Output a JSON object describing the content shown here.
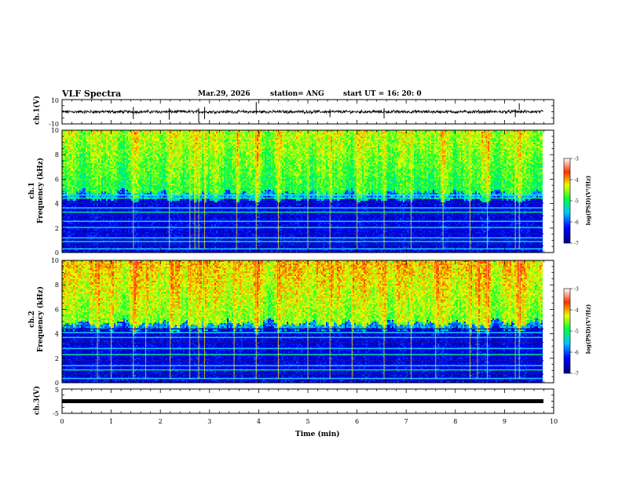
{
  "header": {
    "title": "VLF Spectra",
    "date": "Mar.29, 2026",
    "station": "station= ANG",
    "start": "start  UT =   16: 20: 0"
  },
  "chart_data": [
    {
      "type": "line",
      "name": "ch1-waveform",
      "ylabel": "ch.1(V)",
      "ytick_labels": [
        "10",
        "-10"
      ],
      "ylim": [
        -10,
        10
      ],
      "xlim": [
        0,
        10
      ],
      "baseline": 0,
      "spikes": [
        [
          1.45,
          0.4,
          -1.2
        ],
        [
          2.18,
          0.3,
          -1.3
        ],
        [
          2.78,
          -0.9,
          0.6
        ],
        [
          2.82,
          0.2,
          0.4
        ],
        [
          2.9,
          0.4,
          -1.2
        ],
        [
          3.95,
          0.8,
          -0.4
        ],
        [
          5.45,
          0.2,
          -0.9
        ],
        [
          6.55,
          0.3,
          -1.1
        ],
        [
          9.22,
          0.2,
          -0.9
        ],
        [
          9.3,
          0.7,
          0.3
        ]
      ]
    },
    {
      "type": "heatmap",
      "name": "ch1-spectrogram",
      "ylabel": "ch.1\nFrequency (kHz)",
      "ylim": [
        0,
        10
      ],
      "xlim": [
        0,
        10
      ],
      "ytick_labels": [
        "0",
        "2",
        "4",
        "6",
        "8",
        "10"
      ],
      "colorbar": {
        "label": "log(PSD)(V²/Hz)",
        "range": [
          -7,
          -3
        ],
        "tick_labels": [
          "-3",
          "-4",
          "-5",
          "-6",
          "-7"
        ]
      },
      "bands_khz": [
        0.3,
        0.55,
        0.9,
        1.2,
        1.55,
        2.05,
        2.55,
        3.0,
        3.3,
        3.65,
        4.05,
        4.45,
        4.7
      ],
      "bursts_min": [
        1.45,
        2.18,
        2.6,
        2.7,
        2.78,
        2.9,
        3.55,
        3.95,
        4.4,
        5.0,
        5.45,
        6.0,
        6.55,
        7.1,
        7.75,
        8.3,
        8.65,
        9.22,
        9.3
      ],
      "description": "broadband emissions above ~5 kHz with log(PSD) -5 to -3; quiet -7 to -6 between 0.5 and 5 kHz"
    },
    {
      "type": "heatmap",
      "name": "ch2-spectrogram",
      "ylabel": "ch.2\nFrequency (kHz)",
      "ylim": [
        0,
        10
      ],
      "xlim": [
        0,
        10
      ],
      "ytick_labels": [
        "0",
        "2",
        "4",
        "6",
        "8",
        "10"
      ],
      "colorbar": {
        "label": "log(PSD)(V²/Hz)",
        "range": [
          -7,
          -3
        ],
        "tick_labels": [
          "-3",
          "-4",
          "-5",
          "-6",
          "-7"
        ]
      },
      "bands_khz": [
        0.35,
        0.7,
        1.05,
        1.4,
        1.8,
        2.3,
        2.8,
        3.3,
        3.7,
        4.1,
        4.4
      ],
      "bursts_min": [
        0.72,
        1.0,
        1.45,
        1.7,
        2.2,
        2.6,
        2.78,
        2.9,
        3.5,
        3.95,
        4.4,
        5.0,
        5.45,
        5.9,
        6.55,
        7.1,
        7.6,
        8.3,
        8.45,
        8.65,
        9.22,
        9.3
      ],
      "description": "stronger broadband emissions above ~4.5 kHz reaching -3; quiet below 4 kHz"
    },
    {
      "type": "line",
      "name": "ch3-waveform",
      "ylabel": "ch.3(V)",
      "ytick_labels": [
        "5",
        "-5"
      ],
      "ylim": [
        -5,
        5
      ],
      "xlim": [
        0,
        10
      ],
      "baseline": 0,
      "spikes": []
    }
  ],
  "xaxis": {
    "label": "Time (min)",
    "tick_labels": [
      "0",
      "1",
      "2",
      "3",
      "4",
      "5",
      "6",
      "7",
      "8",
      "9",
      "10"
    ]
  }
}
